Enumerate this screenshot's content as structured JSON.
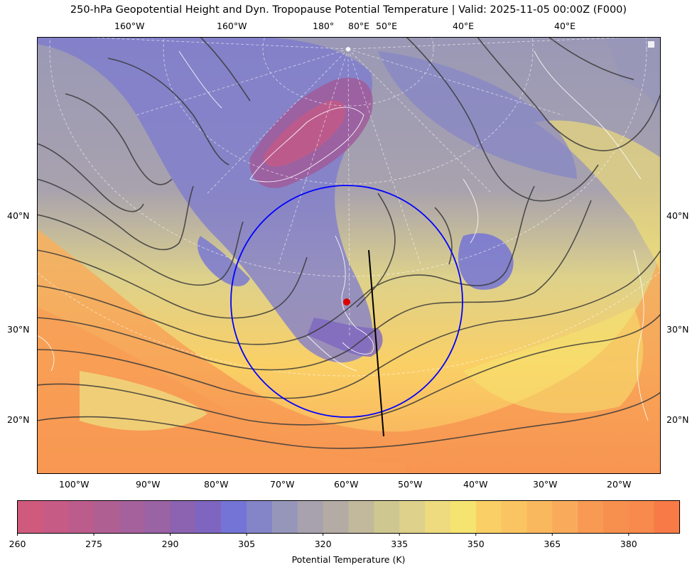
{
  "title": "250-hPa Geopotential Height and Dyn. Tropopause Potential Temperature   |  Valid: 2025-11-05 00:00Z (F000)",
  "top_lon_labels": [
    "160°W",
    "160°W",
    "180°",
    "80°E",
    "50°E",
    "40°E",
    "40°E"
  ],
  "bottom_lon_labels": [
    "100°W",
    "90°W",
    "80°W",
    "70°W",
    "60°W",
    "50°W",
    "40°W",
    "30°W",
    "20°W"
  ],
  "left_lat_labels": [
    "40°N",
    "30°N",
    "20°N"
  ],
  "right_lat_labels": [
    "40°N",
    "30°N",
    "20°N"
  ],
  "colorbar": {
    "label": "Potential Temperature (K)",
    "ticks": [
      "260",
      "275",
      "290",
      "305",
      "320",
      "335",
      "350",
      "365",
      "380"
    ],
    "colors": [
      "#cf5a7e",
      "#c65b85",
      "#bc5c8c",
      "#b05f93",
      "#a5619b",
      "#9a63a4",
      "#8b63b1",
      "#7e66c0",
      "#7474d6",
      "#8484c8",
      "#9696ba",
      "#a8a2ae",
      "#b4aca4",
      "#c2b89c",
      "#cfc790",
      "#ddd18b",
      "#eedb7f",
      "#f6e470",
      "#fad066",
      "#fbc462",
      "#f9b85e",
      "#f9ab5b",
      "#f89a54",
      "#f7904f",
      "#f78a4c",
      "#f77a47"
    ]
  },
  "colors": {
    "focus_circle": "#0000ff",
    "cross_section": "#000000",
    "center_marker": "#dd0000",
    "contours": "#3a3a3a"
  }
}
